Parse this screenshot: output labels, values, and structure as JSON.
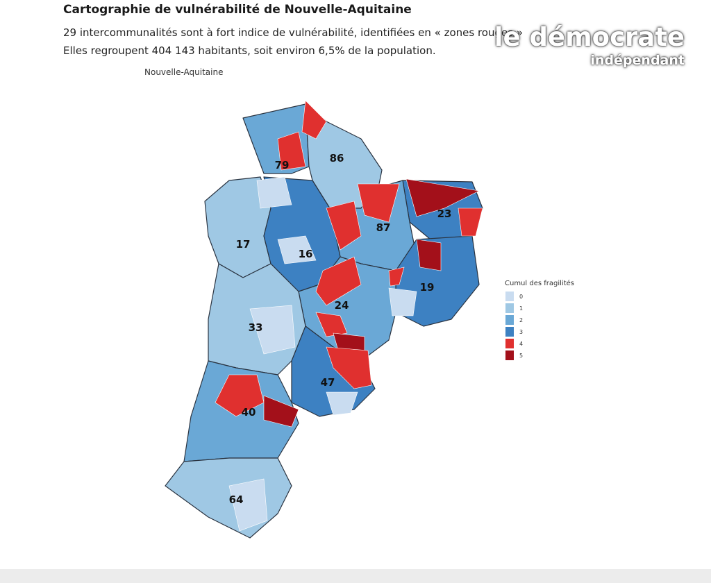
{
  "header": {
    "title": "Cartographie de vulnérabilité de Nouvelle-Aquitaine",
    "lines": [
      "29 intercommunalités sont à fort indice de vulnérabilité, identifiées en « zones rouges »",
      "Elles regroupent 404 143 habitants, soit environ 6,5% de la population."
    ]
  },
  "map": {
    "title": "Nouvelle-Aquitaine",
    "departments": [
      "79",
      "86",
      "23",
      "87",
      "17",
      "16",
      "19",
      "24",
      "33",
      "47",
      "40",
      "64"
    ],
    "legend": {
      "title": "Cumul des fragilités",
      "items": [
        {
          "label": "0",
          "color": "#c9dcf0"
        },
        {
          "label": "1",
          "color": "#9fc8e4"
        },
        {
          "label": "2",
          "color": "#6aa8d6"
        },
        {
          "label": "3",
          "color": "#3d81c2"
        },
        {
          "label": "4",
          "color": "#e0302f"
        },
        {
          "label": "5",
          "color": "#a3101a"
        }
      ]
    }
  },
  "watermark": {
    "name": "le démocrate",
    "tagline": "indépendant"
  }
}
